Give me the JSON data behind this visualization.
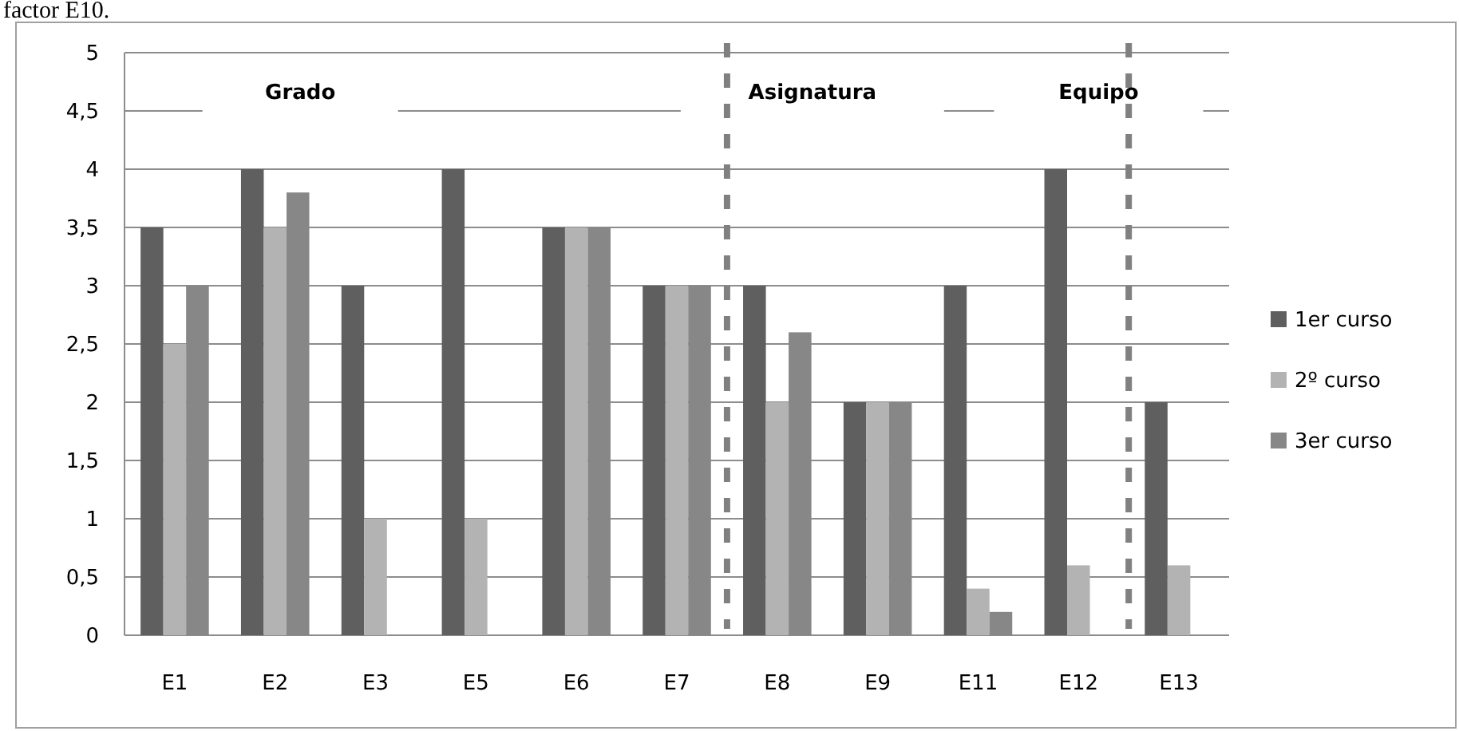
{
  "chart_data": {
    "type": "bar",
    "categories": [
      "E1",
      "E2",
      "E3",
      "E5",
      "E6",
      "E7",
      "E8",
      "E9",
      "E11",
      "E12",
      "E13"
    ],
    "series": [
      {
        "name": "1er curso",
        "color": "#5f5f5f",
        "values": [
          3.5,
          4,
          3,
          4,
          3.5,
          3,
          3,
          2,
          3,
          4,
          2
        ]
      },
      {
        "name": "2º curso",
        "color": "#b3b3b3",
        "values": [
          2.5,
          3.5,
          1,
          1,
          3.5,
          3,
          2,
          2,
          0.4,
          0.6,
          0.6
        ]
      },
      {
        "name": "3er curso",
        "color": "#878787",
        "values": [
          3,
          3.8,
          0,
          0,
          3.5,
          3,
          2.6,
          2,
          0.2,
          0,
          0
        ]
      }
    ],
    "ylim": [
      0,
      5
    ],
    "yticks": [
      {
        "value": 0,
        "label": "0"
      },
      {
        "value": 0.5,
        "label": "0,5"
      },
      {
        "value": 1,
        "label": "1"
      },
      {
        "value": 1.5,
        "label": "1,5"
      },
      {
        "value": 2,
        "label": "2"
      },
      {
        "value": 2.5,
        "label": "2,5"
      },
      {
        "value": 3,
        "label": "3"
      },
      {
        "value": 3.5,
        "label": "3,5"
      },
      {
        "value": 4,
        "label": "4"
      },
      {
        "value": 4.5,
        "label": "4,5"
      },
      {
        "value": 5,
        "label": "5"
      }
    ],
    "grid": "y",
    "legend": "right",
    "annotations": [
      "factor E10.",
      "Grado",
      "Asignatura",
      "Equipo"
    ]
  }
}
